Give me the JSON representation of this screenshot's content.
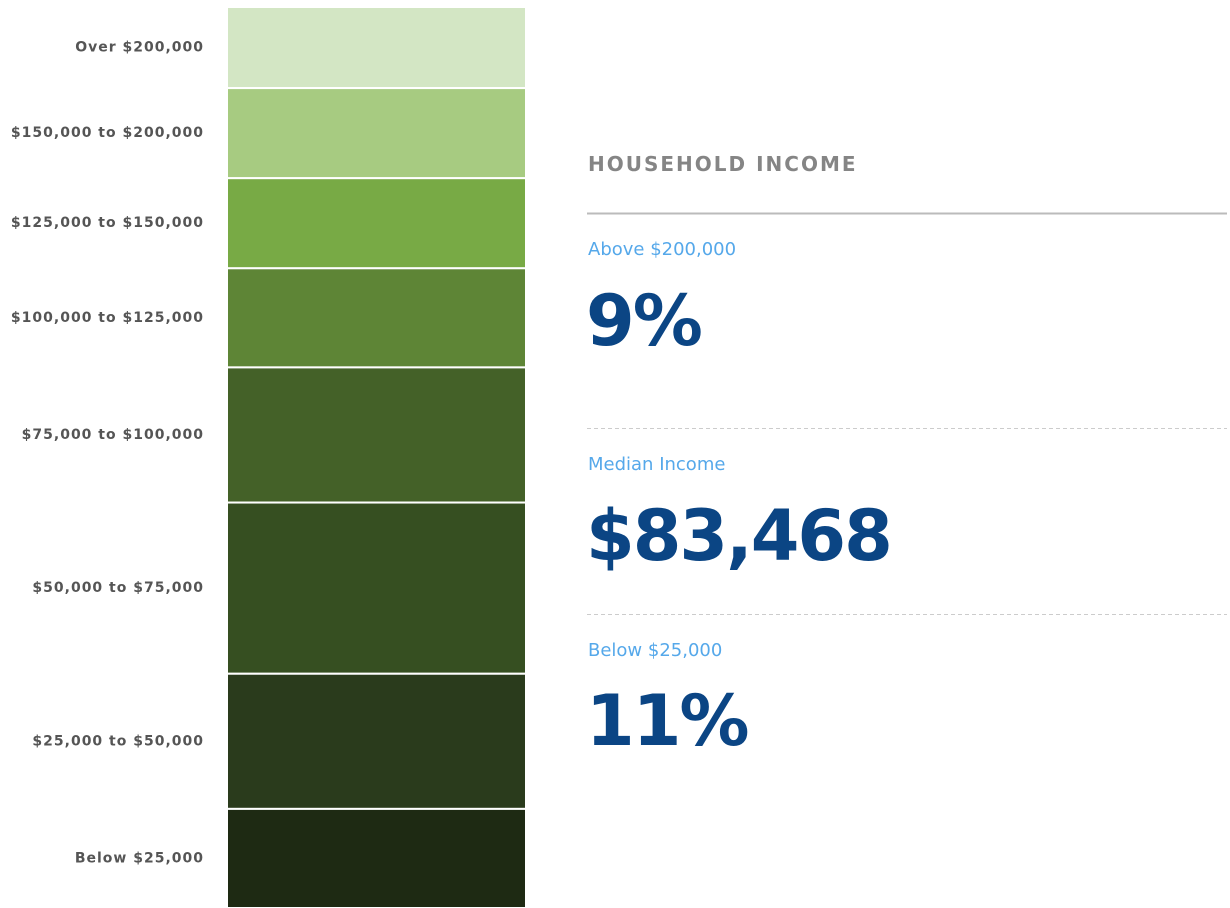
{
  "chart_data": {
    "type": "stacked_bar",
    "categories": [
      "Over $200,000",
      "$150,000 to $200,000",
      "$125,000 to $150,000",
      "$100,000 to $125,000",
      "$75,000 to $100,000",
      "$50,000 to $75,000",
      "$25,000 to $50,000",
      "Below $25,000"
    ],
    "values": [
      9,
      10,
      10,
      11,
      15,
      19,
      15,
      11
    ],
    "colors": [
      "#d3e6c4",
      "#a7cb81",
      "#78aa45",
      "#5e8536",
      "#446128",
      "#364f21",
      "#2a3b1c",
      "#1e2a13"
    ],
    "ylim": [
      0,
      100
    ]
  },
  "panel": {
    "title": "HOUSEHOLD INCOME",
    "stats": [
      {
        "label": "Above $200,000",
        "value": "9%"
      },
      {
        "label": "Median Income",
        "value": "$83,468"
      },
      {
        "label": "Below $25,000",
        "value": "11%"
      }
    ]
  }
}
